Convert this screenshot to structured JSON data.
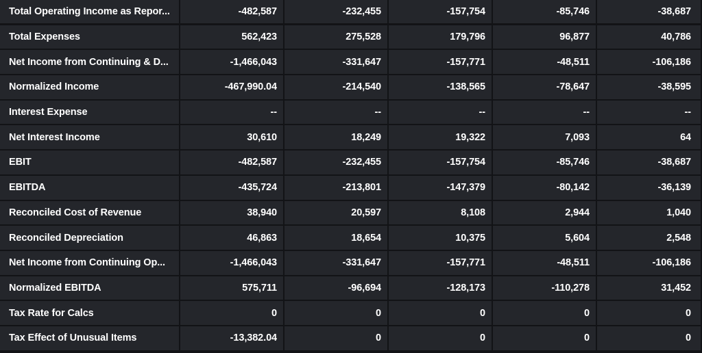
{
  "table": {
    "rows": [
      {
        "label": "Total Operating Income as Repor...",
        "values": [
          "-482,587",
          "-232,455",
          "-157,754",
          "-85,746",
          "-38,687"
        ]
      },
      {
        "label": "Total Expenses",
        "values": [
          "562,423",
          "275,528",
          "179,796",
          "96,877",
          "40,786"
        ]
      },
      {
        "label": "Net Income from Continuing & D...",
        "values": [
          "-1,466,043",
          "-331,647",
          "-157,771",
          "-48,511",
          "-106,186"
        ]
      },
      {
        "label": "Normalized Income",
        "values": [
          "-467,990.04",
          "-214,540",
          "-138,565",
          "-78,647",
          "-38,595"
        ]
      },
      {
        "label": "Interest Expense",
        "values": [
          "--",
          "--",
          "--",
          "--",
          "--"
        ]
      },
      {
        "label": "Net Interest Income",
        "values": [
          "30,610",
          "18,249",
          "19,322",
          "7,093",
          "64"
        ]
      },
      {
        "label": "EBIT",
        "values": [
          "-482,587",
          "-232,455",
          "-157,754",
          "-85,746",
          "-38,687"
        ]
      },
      {
        "label": "EBITDA",
        "values": [
          "-435,724",
          "-213,801",
          "-147,379",
          "-80,142",
          "-36,139"
        ]
      },
      {
        "label": "Reconciled Cost of Revenue",
        "values": [
          "38,940",
          "20,597",
          "8,108",
          "2,944",
          "1,040"
        ]
      },
      {
        "label": "Reconciled Depreciation",
        "values": [
          "46,863",
          "18,654",
          "10,375",
          "5,604",
          "2,548"
        ]
      },
      {
        "label": "Net Income from Continuing Op...",
        "values": [
          "-1,466,043",
          "-331,647",
          "-157,771",
          "-48,511",
          "-106,186"
        ]
      },
      {
        "label": "Normalized EBITDA",
        "values": [
          "575,711",
          "-96,694",
          "-128,173",
          "-110,278",
          "31,452"
        ]
      },
      {
        "label": "Tax Rate for Calcs",
        "values": [
          "0",
          "0",
          "0",
          "0",
          "0"
        ]
      },
      {
        "label": "Tax Effect of Unusual Items",
        "values": [
          "-13,382.04",
          "0",
          "0",
          "0",
          "0"
        ]
      }
    ]
  },
  "colors": {
    "background": "#121316",
    "cell": "#24262b",
    "text": "#ffffff"
  }
}
